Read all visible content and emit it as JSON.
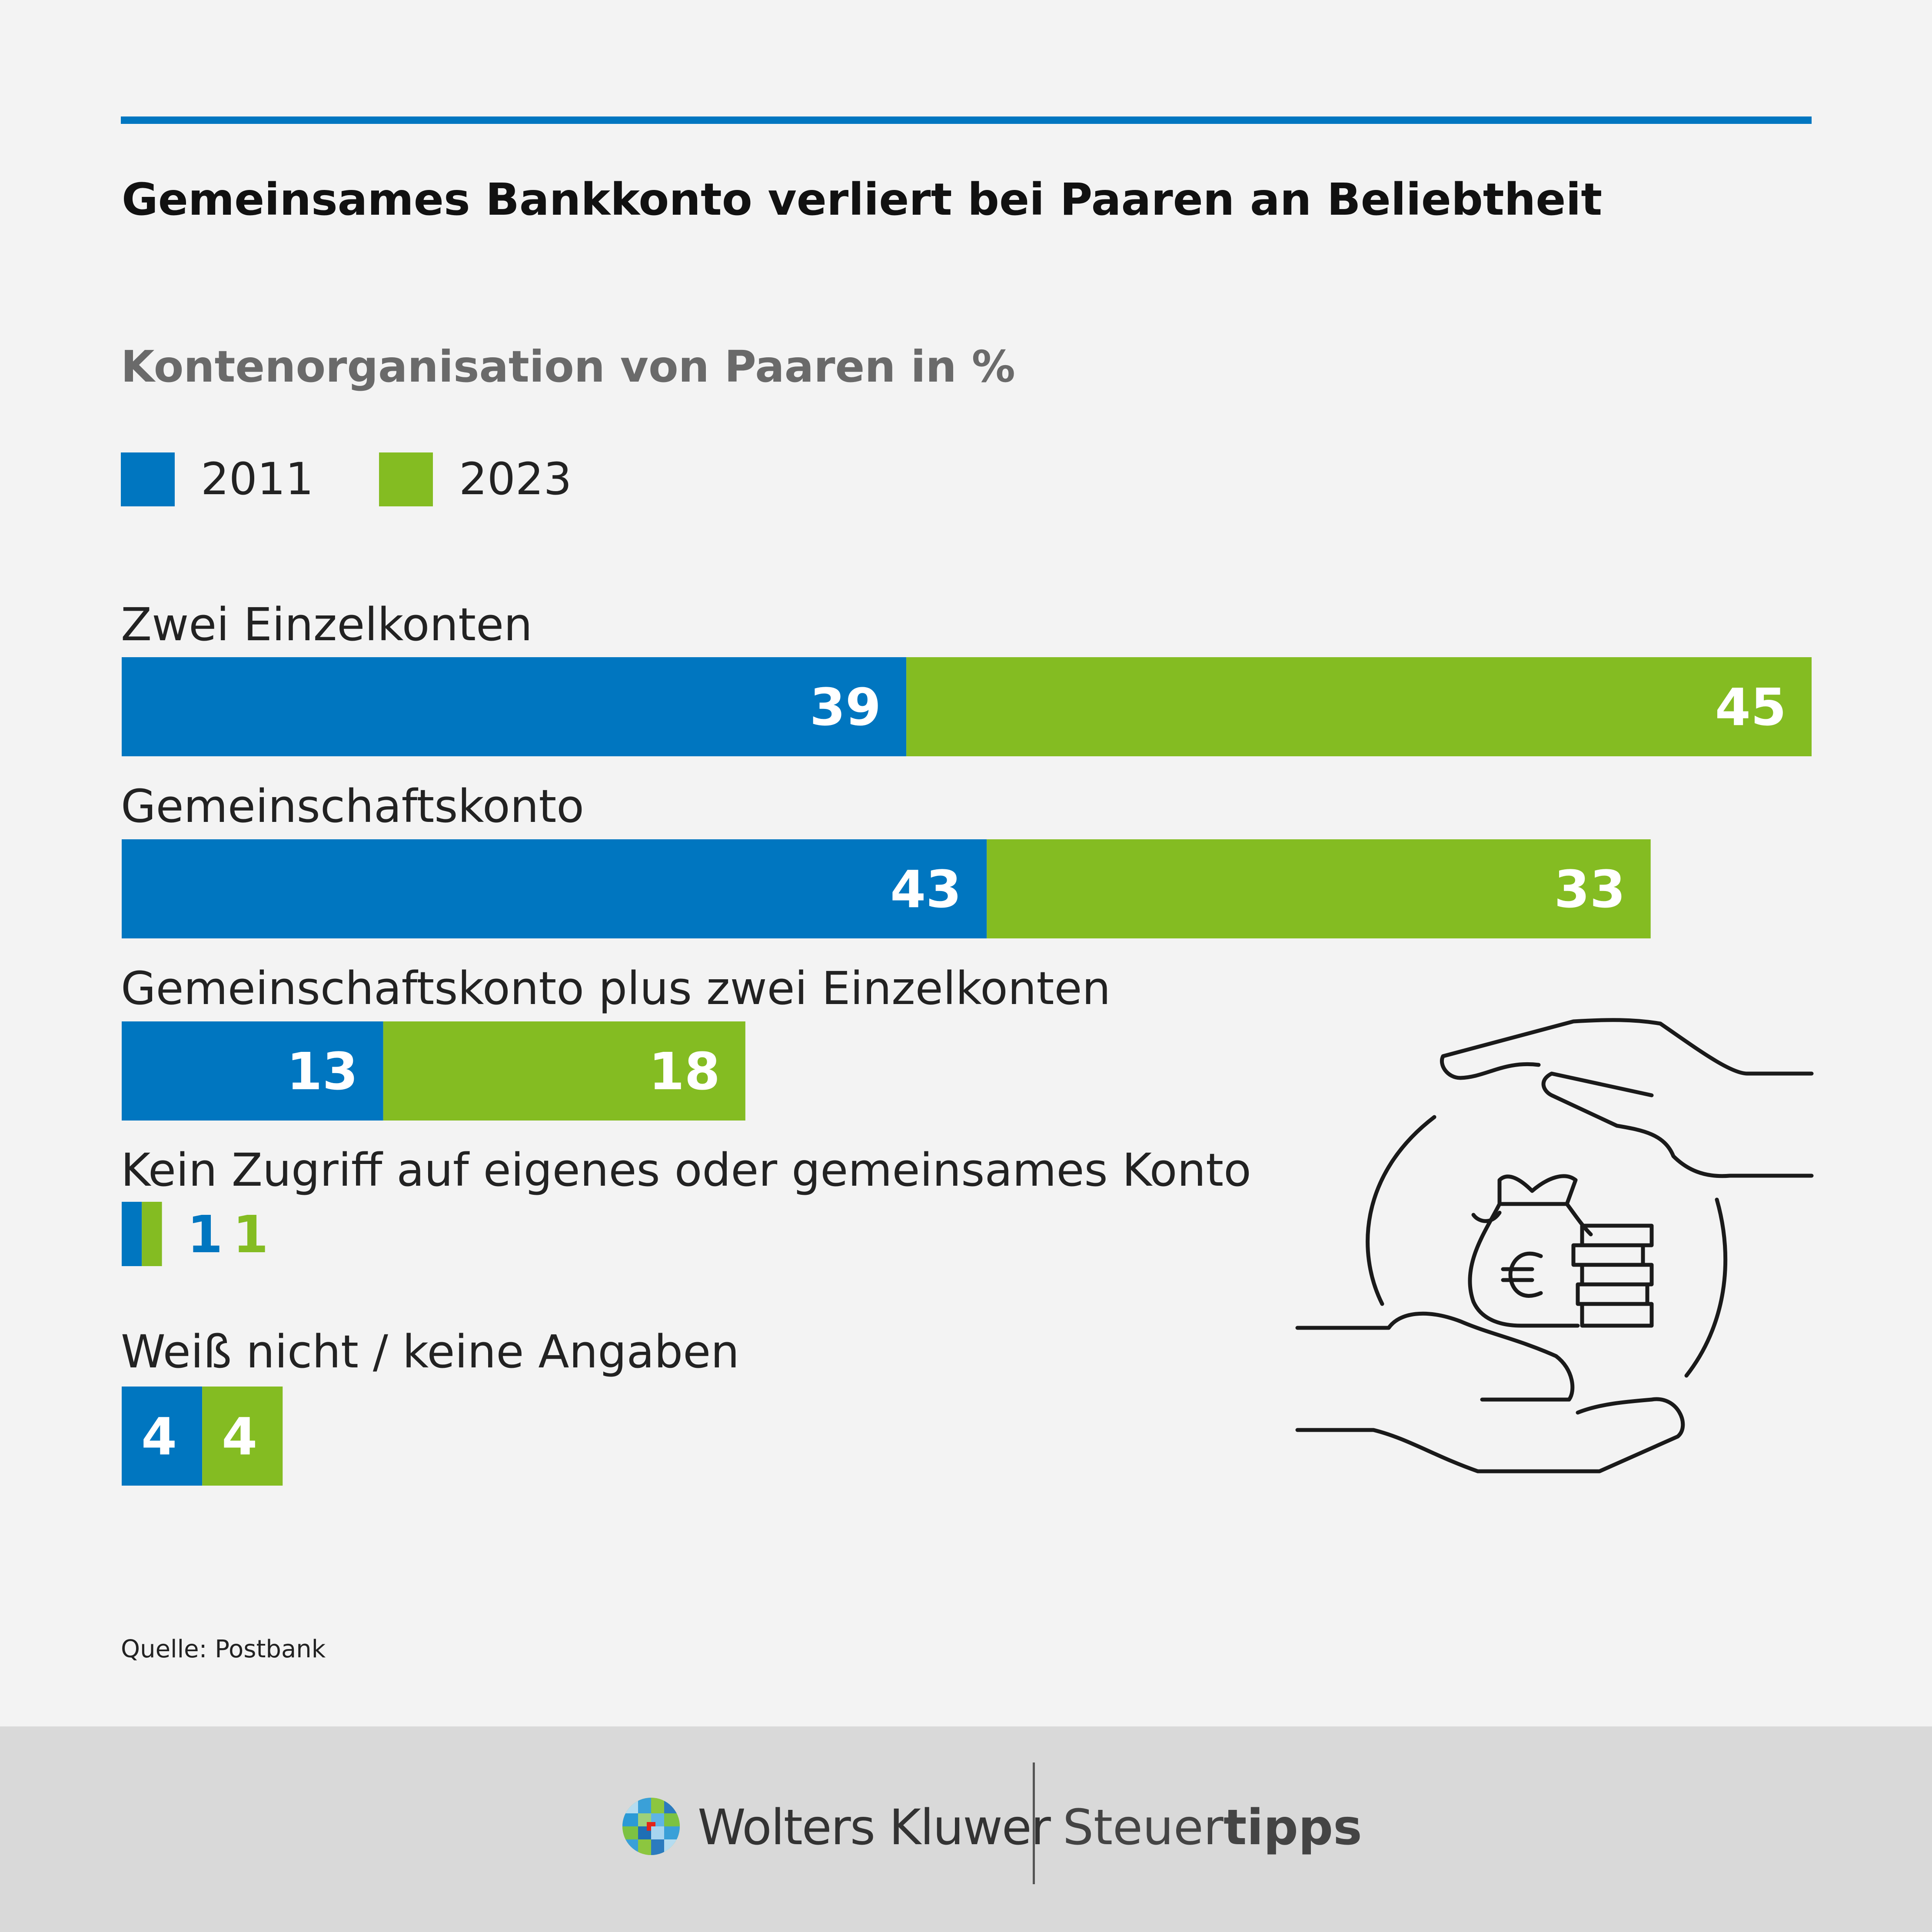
{
  "title": "Gemeinsames Bankkonto verliert bei Paaren an Beliebtheit",
  "subtitle": "Kontenorganisation von Paaren in %",
  "legend": [
    {
      "label": "2011",
      "color": "#0076c0"
    },
    {
      "label": "2023",
      "color": "#84bc22"
    }
  ],
  "chart_data": {
    "type": "bar",
    "orientation": "horizontal",
    "stacked": true,
    "title": "Kontenorganisation von Paaren in %",
    "categories": [
      "Zwei Einzelkonten",
      "Gemeinschaftskonto",
      "Gemeinschaftskonto plus zwei Einzelkonten",
      "Kein Zugriff auf eigenes oder gemeinsames Konto",
      "Weiß nicht / keine Angaben"
    ],
    "series": [
      {
        "name": "2011",
        "color": "#0076c0",
        "values": [
          39,
          43,
          13,
          1,
          4
        ]
      },
      {
        "name": "2023",
        "color": "#84bc22",
        "values": [
          45,
          33,
          18,
          1,
          4
        ]
      }
    ],
    "xlim": [
      0,
      84
    ],
    "grid": false,
    "legend_position": "top-left"
  },
  "source": "Quelle: Postbank",
  "icon": "hands-holding-money-bag-icon",
  "footer": {
    "brand_left": "Wolters Kluwer",
    "brand_right_regular": "Steuer",
    "brand_right_bold": "tipps"
  }
}
